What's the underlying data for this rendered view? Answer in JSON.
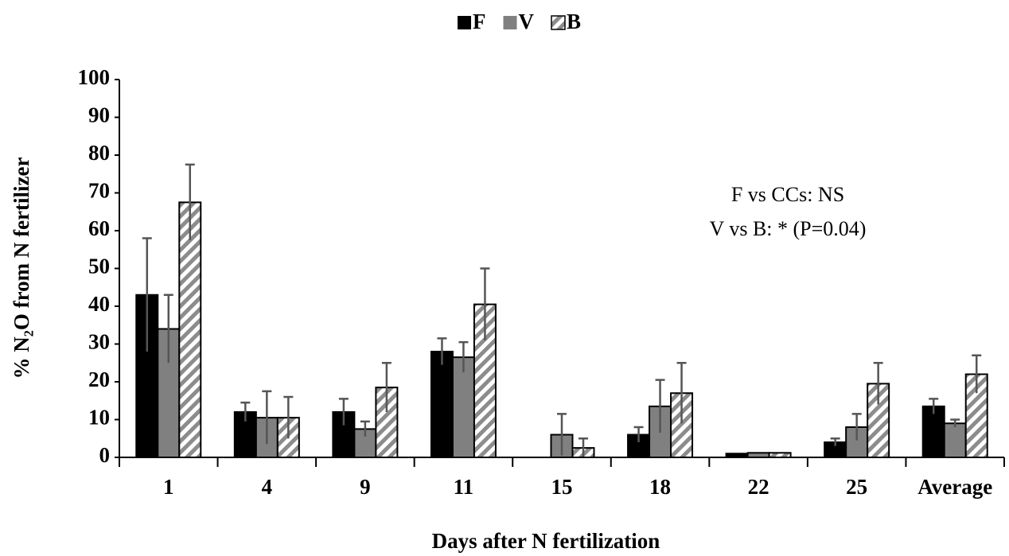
{
  "chart_data": {
    "type": "bar",
    "x_label": "Days after N fertilization",
    "y_label": "% N₂O from N fertilizer",
    "annotations": [
      "F vs CCs: NS",
      "V vs B: * (P=0.04)"
    ],
    "categories": [
      "1",
      "4",
      "9",
      "11",
      "15",
      "18",
      "22",
      "25",
      "Average"
    ],
    "series": [
      {
        "name": "F",
        "color": "#000000",
        "values": [
          43,
          12,
          12,
          28,
          0,
          6,
          1,
          4,
          13.5
        ],
        "errors": [
          15,
          2.5,
          3.5,
          3.5,
          null,
          2,
          null,
          1,
          2
        ]
      },
      {
        "name": "V",
        "color": "#808080",
        "values": [
          34,
          10.5,
          7.5,
          26.5,
          6,
          13.5,
          1.2,
          8,
          9
        ],
        "errors": [
          9,
          7,
          2,
          4,
          5.5,
          7,
          null,
          3.5,
          1
        ]
      },
      {
        "name": "B",
        "color": "hatch",
        "values": [
          67.5,
          10.5,
          18.5,
          40.5,
          2.5,
          17,
          1.2,
          19.5,
          22
        ],
        "errors": [
          10,
          5.5,
          6.5,
          9.5,
          2.5,
          8,
          null,
          5.5,
          5
        ]
      }
    ],
    "ylim": [
      0,
      100
    ],
    "yticks": [
      0,
      10,
      20,
      30,
      40,
      50,
      60,
      70,
      80,
      90,
      100
    ]
  }
}
